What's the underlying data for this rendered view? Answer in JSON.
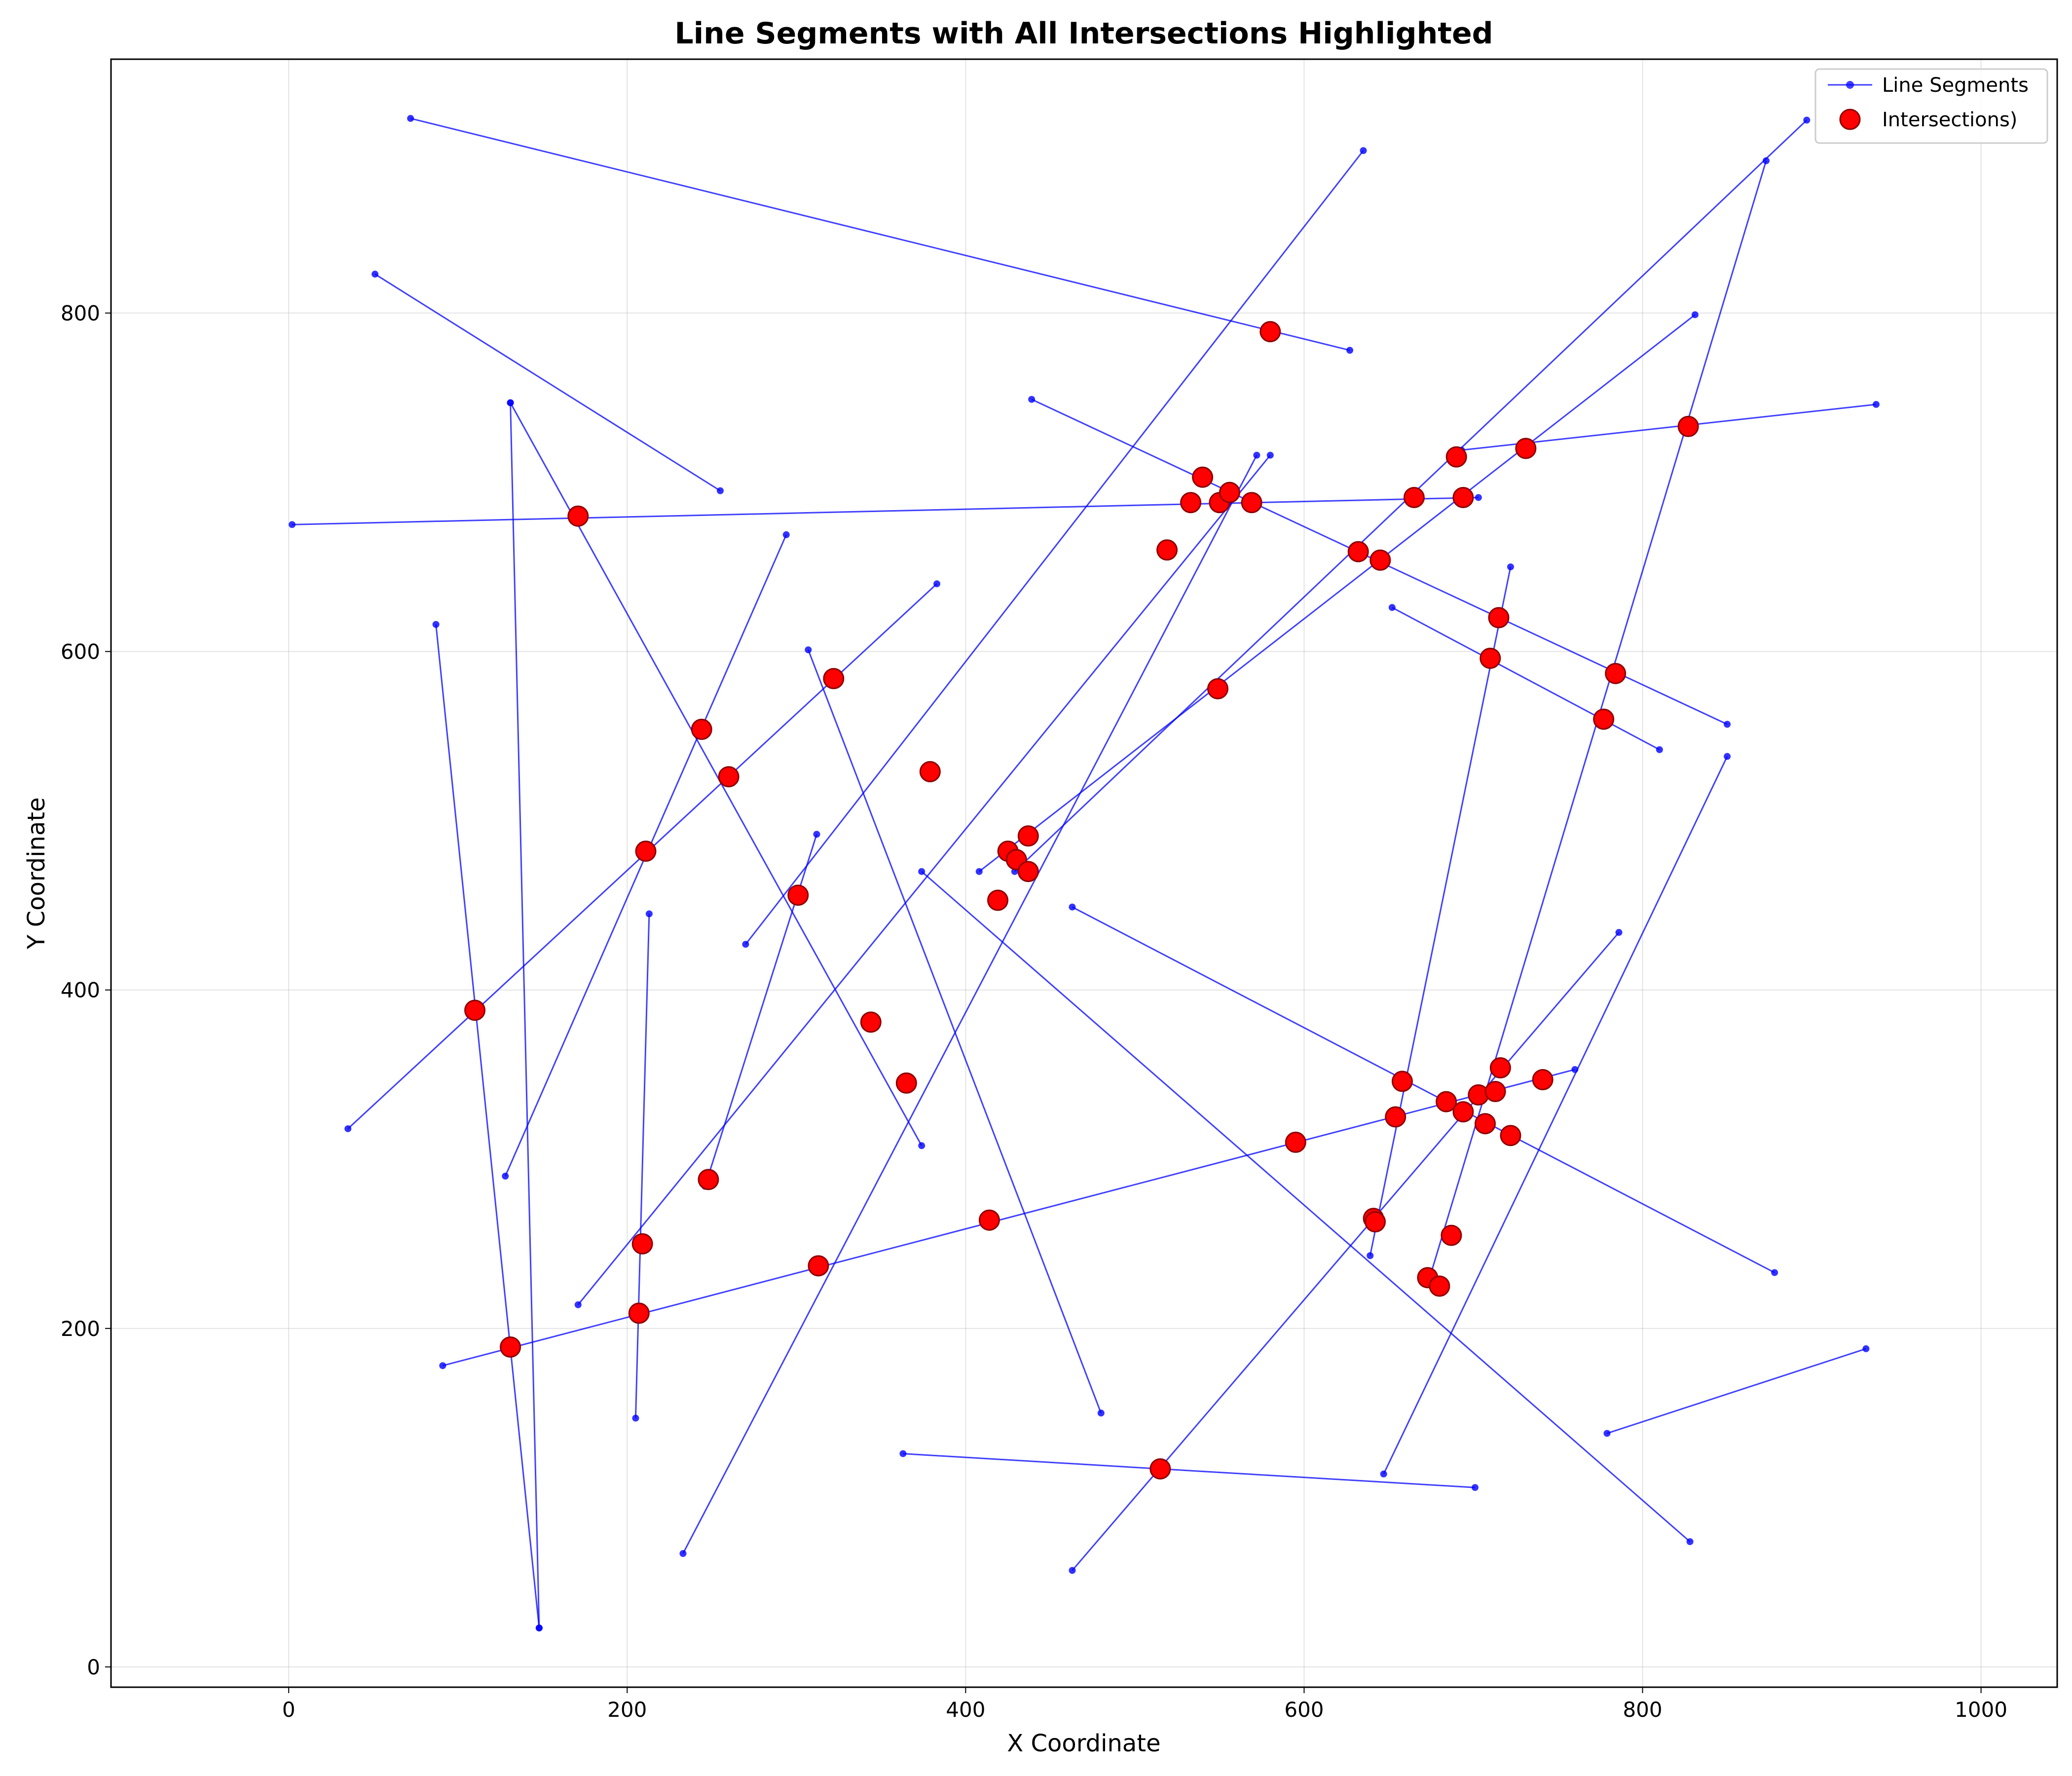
{
  "chart_data": {
    "type": "scatter",
    "title": "Line Segments with All Intersections Highlighted",
    "xlabel": "X Coordinate",
    "ylabel": "Y Coordinate",
    "xlim": [
      -105,
      1045
    ],
    "ylim": [
      -12,
      950
    ],
    "x_ticks": [
      0,
      200,
      400,
      600,
      800,
      1000
    ],
    "y_ticks": [
      0,
      200,
      400,
      600,
      800
    ],
    "grid": true,
    "legend_position": "top-right",
    "colors": {
      "segments": "#0000ff",
      "intersections": "#ff0000",
      "intersection_edge": "#8b0000"
    },
    "legend": [
      {
        "label": "Line Segments",
        "marker": "line-dot"
      },
      {
        "label": "Intersections)",
        "marker": "red-circle"
      }
    ],
    "segments": [
      [
        [
          72,
          915
        ],
        [
          627,
          778
        ]
      ],
      [
        [
          51,
          823
        ],
        [
          255,
          695
        ]
      ],
      [
        [
          131,
          747
        ],
        [
          148,
          23
        ]
      ],
      [
        [
          131,
          747
        ],
        [
          374,
          308
        ]
      ],
      [
        [
          2,
          675
        ],
        [
          703,
          691
        ]
      ],
      [
        [
          87,
          616
        ],
        [
          148,
          23
        ]
      ],
      [
        [
          35,
          318
        ],
        [
          383,
          640
        ]
      ],
      [
        [
          128,
          290
        ],
        [
          294,
          669
        ]
      ],
      [
        [
          171,
          214
        ],
        [
          580,
          716
        ]
      ],
      [
        [
          270,
          427
        ],
        [
          635,
          896
        ]
      ],
      [
        [
          307,
          601
        ],
        [
          480,
          150
        ]
      ],
      [
        [
          233,
          67
        ],
        [
          572,
          716
        ]
      ],
      [
        [
          205,
          147
        ],
        [
          213,
          445
        ]
      ],
      [
        [
          91,
          178
        ],
        [
          760,
          353
        ]
      ],
      [
        [
          246,
          284
        ],
        [
          312,
          492
        ]
      ],
      [
        [
          439,
          749
        ],
        [
          850,
          557
        ]
      ],
      [
        [
          408,
          470
        ],
        [
          831,
          799
        ]
      ],
      [
        [
          429,
          470
        ],
        [
          897,
          914
        ]
      ],
      [
        [
          374,
          470
        ],
        [
          828,
          74
        ]
      ],
      [
        [
          463,
          449
        ],
        [
          878,
          233
        ]
      ],
      [
        [
          652,
          626
        ],
        [
          810,
          542
        ]
      ],
      [
        [
          639,
          243
        ],
        [
          722,
          650
        ]
      ],
      [
        [
          693,
          719
        ],
        [
          938,
          746
        ]
      ],
      [
        [
          673,
          226
        ],
        [
          873,
          890
        ]
      ],
      [
        [
          463,
          57
        ],
        [
          786,
          434
        ]
      ],
      [
        [
          363,
          126
        ],
        [
          701,
          106
        ]
      ],
      [
        [
          647,
          114
        ],
        [
          850,
          538
        ]
      ],
      [
        [
          779,
          138
        ],
        [
          932,
          188
        ]
      ]
    ],
    "intersections": [
      [
        580,
        789
      ],
      [
        171,
        680
      ],
      [
        244,
        554
      ],
      [
        260,
        526
      ],
      [
        322,
        584
      ],
      [
        211,
        482
      ],
      [
        110,
        388
      ],
      [
        301,
        456
      ],
      [
        344,
        381
      ],
      [
        365,
        345
      ],
      [
        414,
        264
      ],
      [
        379,
        529
      ],
      [
        248,
        288
      ],
      [
        209,
        250
      ],
      [
        207,
        209
      ],
      [
        131,
        189
      ],
      [
        313,
        237
      ],
      [
        540,
        703
      ],
      [
        533,
        688
      ],
      [
        550,
        688
      ],
      [
        556,
        694
      ],
      [
        569,
        688
      ],
      [
        519,
        660
      ],
      [
        549,
        578
      ],
      [
        437,
        491
      ],
      [
        425,
        482
      ],
      [
        430,
        477
      ],
      [
        437,
        470
      ],
      [
        419,
        453
      ],
      [
        632,
        659
      ],
      [
        645,
        654
      ],
      [
        665,
        691
      ],
      [
        690,
        715
      ],
      [
        694,
        691
      ],
      [
        731,
        720
      ],
      [
        827,
        733
      ],
      [
        715,
        620
      ],
      [
        710,
        596
      ],
      [
        784,
        587
      ],
      [
        777,
        560
      ],
      [
        595,
        310
      ],
      [
        658,
        346
      ],
      [
        654,
        325
      ],
      [
        684,
        334
      ],
      [
        694,
        328
      ],
      [
        703,
        338
      ],
      [
        713,
        340
      ],
      [
        716,
        354
      ],
      [
        741,
        347
      ],
      [
        707,
        321
      ],
      [
        722,
        314
      ],
      [
        641,
        265
      ],
      [
        642,
        263
      ],
      [
        687,
        255
      ],
      [
        673,
        230
      ],
      [
        680,
        225
      ],
      [
        515,
        117
      ]
    ]
  }
}
